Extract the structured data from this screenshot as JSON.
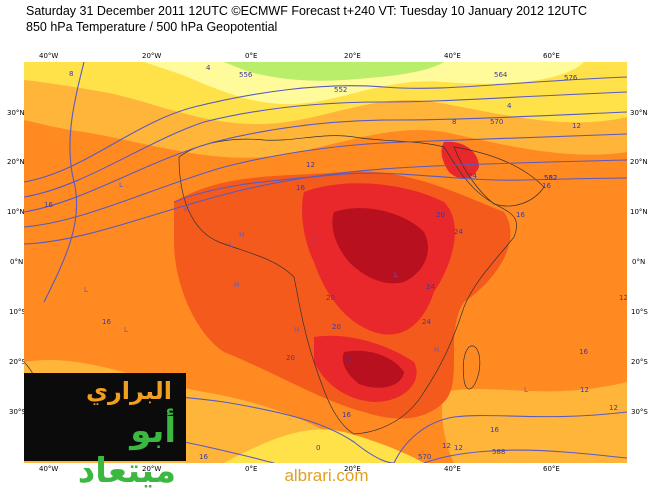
{
  "header": {
    "line1": "Saturday 31 December 2011 12UTC ©ECMWF Forecast t+240 VT: Tuesday 10 January 2012 12UTC",
    "line2": "850 hPa Temperature / 500 hPa Geopotential"
  },
  "axes": {
    "lon_labels": [
      "40°W",
      "20°W",
      "0°E",
      "20°E",
      "40°E",
      "60°E"
    ],
    "lat_labels": [
      "30°N",
      "20°N",
      "10°N",
      "0°N",
      "10°S",
      "20°S",
      "30°S"
    ]
  },
  "colors": {
    "band_light_yellow": "#fffb9a",
    "band_yellow": "#ffe14a",
    "band_orange_light": "#ffb53a",
    "band_orange": "#ff8a22",
    "band_red_orange": "#f45a1c",
    "band_red": "#e8282a",
    "band_dark_red": "#b8101e",
    "band_green": "#b8ee6a",
    "contour_blue": "#5a5abf",
    "logo_orange": "#f0a020",
    "logo_green": "#3ab840",
    "footer": "#e0a020"
  },
  "contour_labels": [
    "8",
    "4",
    "552",
    "556",
    "564",
    "4",
    "570",
    "576",
    "8",
    "12",
    "16",
    "12",
    "16",
    "552",
    "16",
    "16",
    "20",
    "24",
    "24",
    "24",
    "16",
    "12",
    "12",
    "16",
    "20",
    "20",
    "24",
    "24",
    "20",
    "16",
    "16",
    "12",
    "12",
    "582",
    "570",
    "588",
    "0",
    "16",
    "12"
  ],
  "pressure_markers": [
    "L",
    "H",
    "L",
    "L",
    "H",
    "L",
    "H",
    "H",
    "L",
    "L",
    "H",
    "L"
  ],
  "logo": {
    "line1": "البراري",
    "line2": "أبو ميتعاد"
  },
  "footer": {
    "text": "albrari.com"
  }
}
